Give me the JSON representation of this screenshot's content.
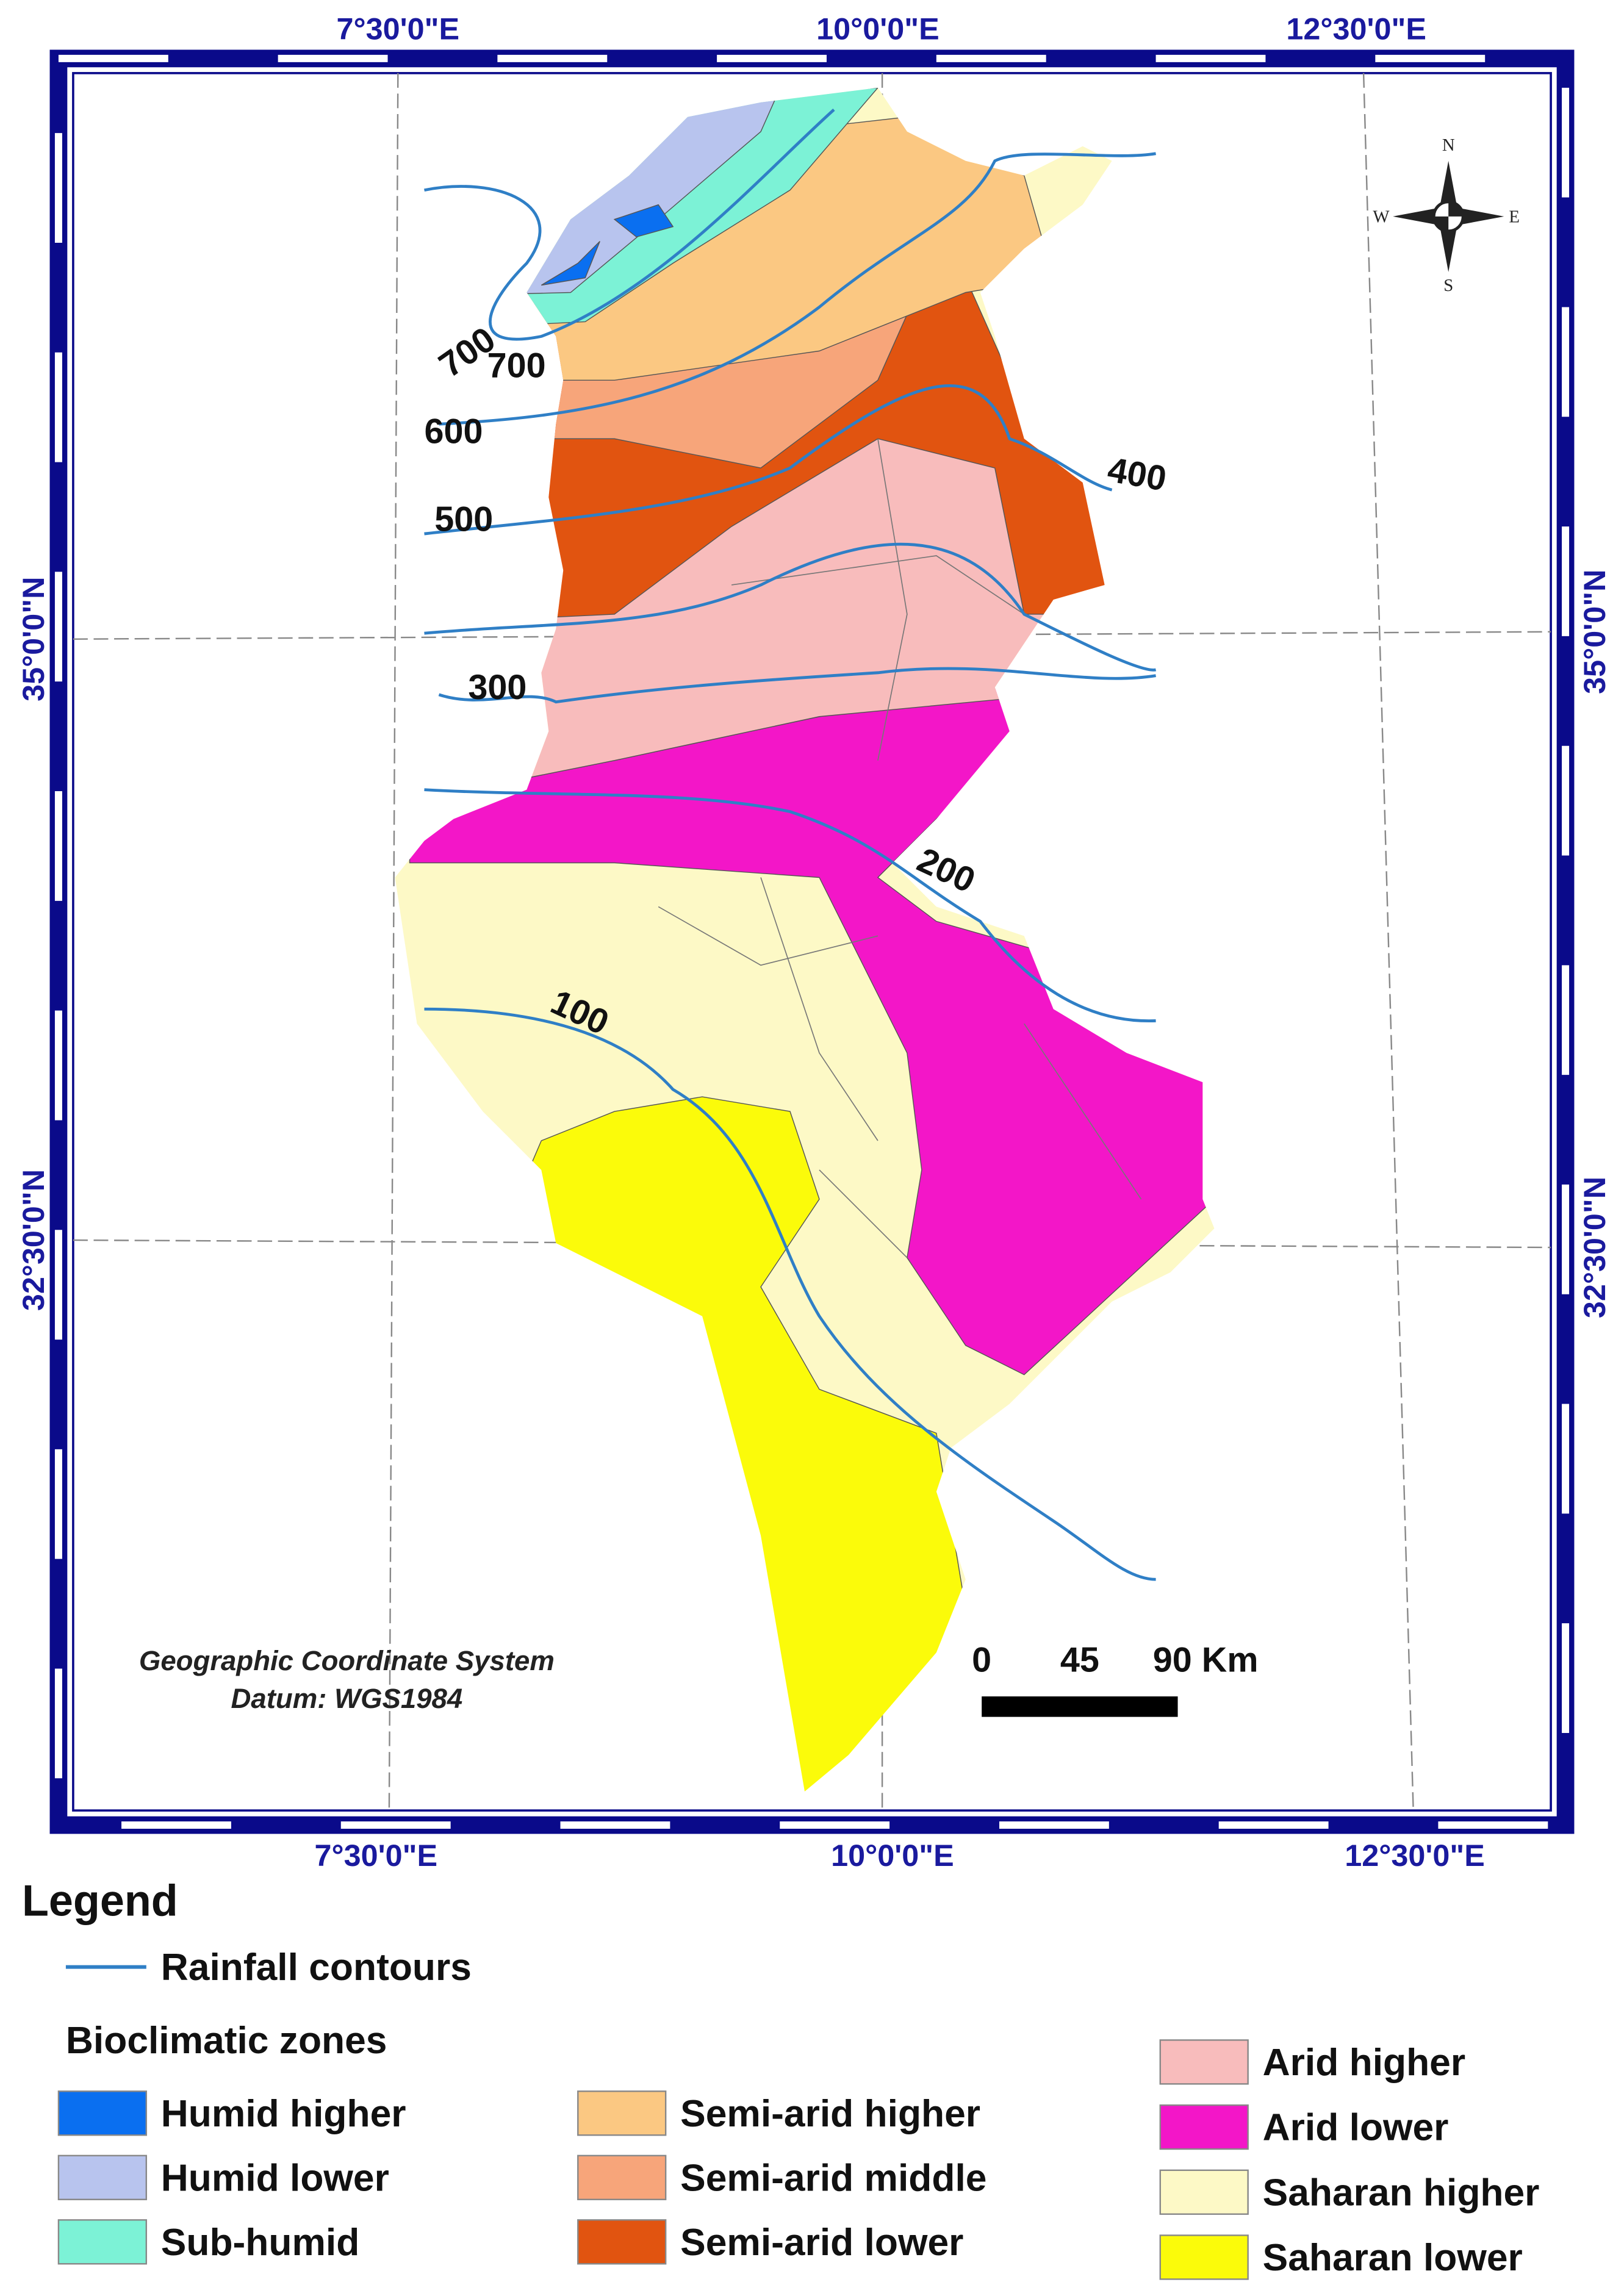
{
  "map": {
    "lon_labels_top": [
      "7°30'0\"E",
      "10°0'0\"E",
      "12°30'0\"E"
    ],
    "lon_labels_bottom": [
      "7°30'0\"E",
      "10°0'0\"E",
      "12°30'0\"E"
    ],
    "lat_labels_left": [
      "35°0'0\"N",
      "32°30'0\"N"
    ],
    "lat_labels_right": [
      "35°0'0\"N",
      "32°30'0\"N"
    ],
    "compass": {
      "n": "N",
      "s": "S",
      "e": "E",
      "w": "W"
    },
    "contour_labels": [
      700,
      700,
      600,
      500,
      400,
      300,
      200,
      100
    ],
    "coordinate_system": "Geographic Coordinate System",
    "datum": "Datum: WGS1984",
    "scale_labels": [
      "0",
      "45",
      "90 Km"
    ]
  },
  "legend": {
    "title": "Legend",
    "line_item": {
      "label": "Rainfall contours",
      "color": "#2f7fc6"
    },
    "zones_title": "Bioclimatic zones",
    "zones": [
      {
        "label": "Humid higher",
        "color": "#0a6ff0"
      },
      {
        "label": "Humid lower",
        "color": "#b8c4ee"
      },
      {
        "label": "Sub-humid",
        "color": "#7cf2d6"
      },
      {
        "label": "Semi-arid higher",
        "color": "#fbc882"
      },
      {
        "label": "Semi-arid middle",
        "color": "#f7a57a"
      },
      {
        "label": "Semi-arid lower",
        "color": "#e15410"
      },
      {
        "label": "Arid higher",
        "color": "#f8bcbc"
      },
      {
        "label": "Arid lower",
        "color": "#f316c8"
      },
      {
        "label": "Saharan higher",
        "color": "#fdf9c6"
      },
      {
        "label": "Saharan lower",
        "color": "#fbfb0a"
      }
    ]
  }
}
